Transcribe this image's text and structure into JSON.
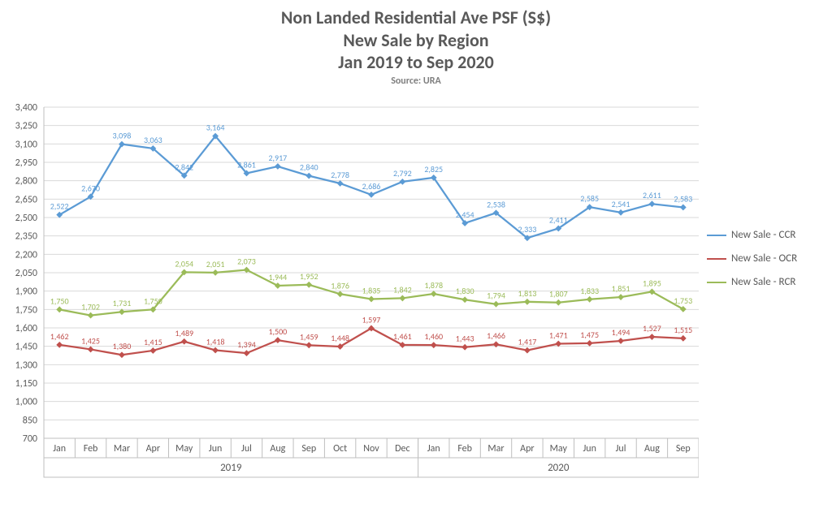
{
  "title_lines": [
    "Non Landed Residential Ave PSF (S$)",
    "New Sale by Region",
    "Jan 2019 to Sep 2020"
  ],
  "source_label": "Source: URA",
  "chart": {
    "type": "line",
    "ylim": [
      700,
      3400
    ],
    "ytick_step": 150,
    "background_color": "#ffffff",
    "grid_color": "#d9d9d9",
    "axis_color": "#bfbfbf",
    "label_color": "#595959",
    "title_fontsize": 22,
    "label_fontsize": 12,
    "data_label_fontsize": 10,
    "line_width": 2.25,
    "marker": "diamond",
    "marker_size": 5,
    "years": [
      {
        "label": "2019",
        "months": [
          "Jan",
          "Feb",
          "Mar",
          "Apr",
          "May",
          "Jun",
          "Jul",
          "Aug",
          "Sep",
          "Oct",
          "Nov",
          "Dec"
        ]
      },
      {
        "label": "2020",
        "months": [
          "Jan",
          "Feb",
          "Mar",
          "Apr",
          "May",
          "Jun",
          "Jul",
          "Aug",
          "Sep"
        ]
      }
    ],
    "series": [
      {
        "name": "New Sale - CCR",
        "color": "#5b9bd5",
        "values": [
          2522,
          2670,
          3098,
          3063,
          2842,
          3164,
          2861,
          2917,
          2840,
          2778,
          2686,
          2792,
          2825,
          2454,
          2538,
          2333,
          2411,
          2585,
          2541,
          2611,
          2583
        ]
      },
      {
        "name": "New Sale - OCR",
        "color": "#c0504d",
        "values": [
          1462,
          1425,
          1380,
          1415,
          1489,
          1418,
          1394,
          1500,
          1459,
          1448,
          1597,
          1461,
          1460,
          1443,
          1466,
          1417,
          1471,
          1475,
          1494,
          1527,
          1515
        ]
      },
      {
        "name": "New Sale - RCR",
        "color": "#9bbb59",
        "values": [
          1750,
          1702,
          1731,
          1750,
          2054,
          2051,
          2073,
          1944,
          1952,
          1876,
          1835,
          1842,
          1878,
          1830,
          1794,
          1813,
          1807,
          1833,
          1851,
          1895,
          1753
        ]
      }
    ]
  }
}
